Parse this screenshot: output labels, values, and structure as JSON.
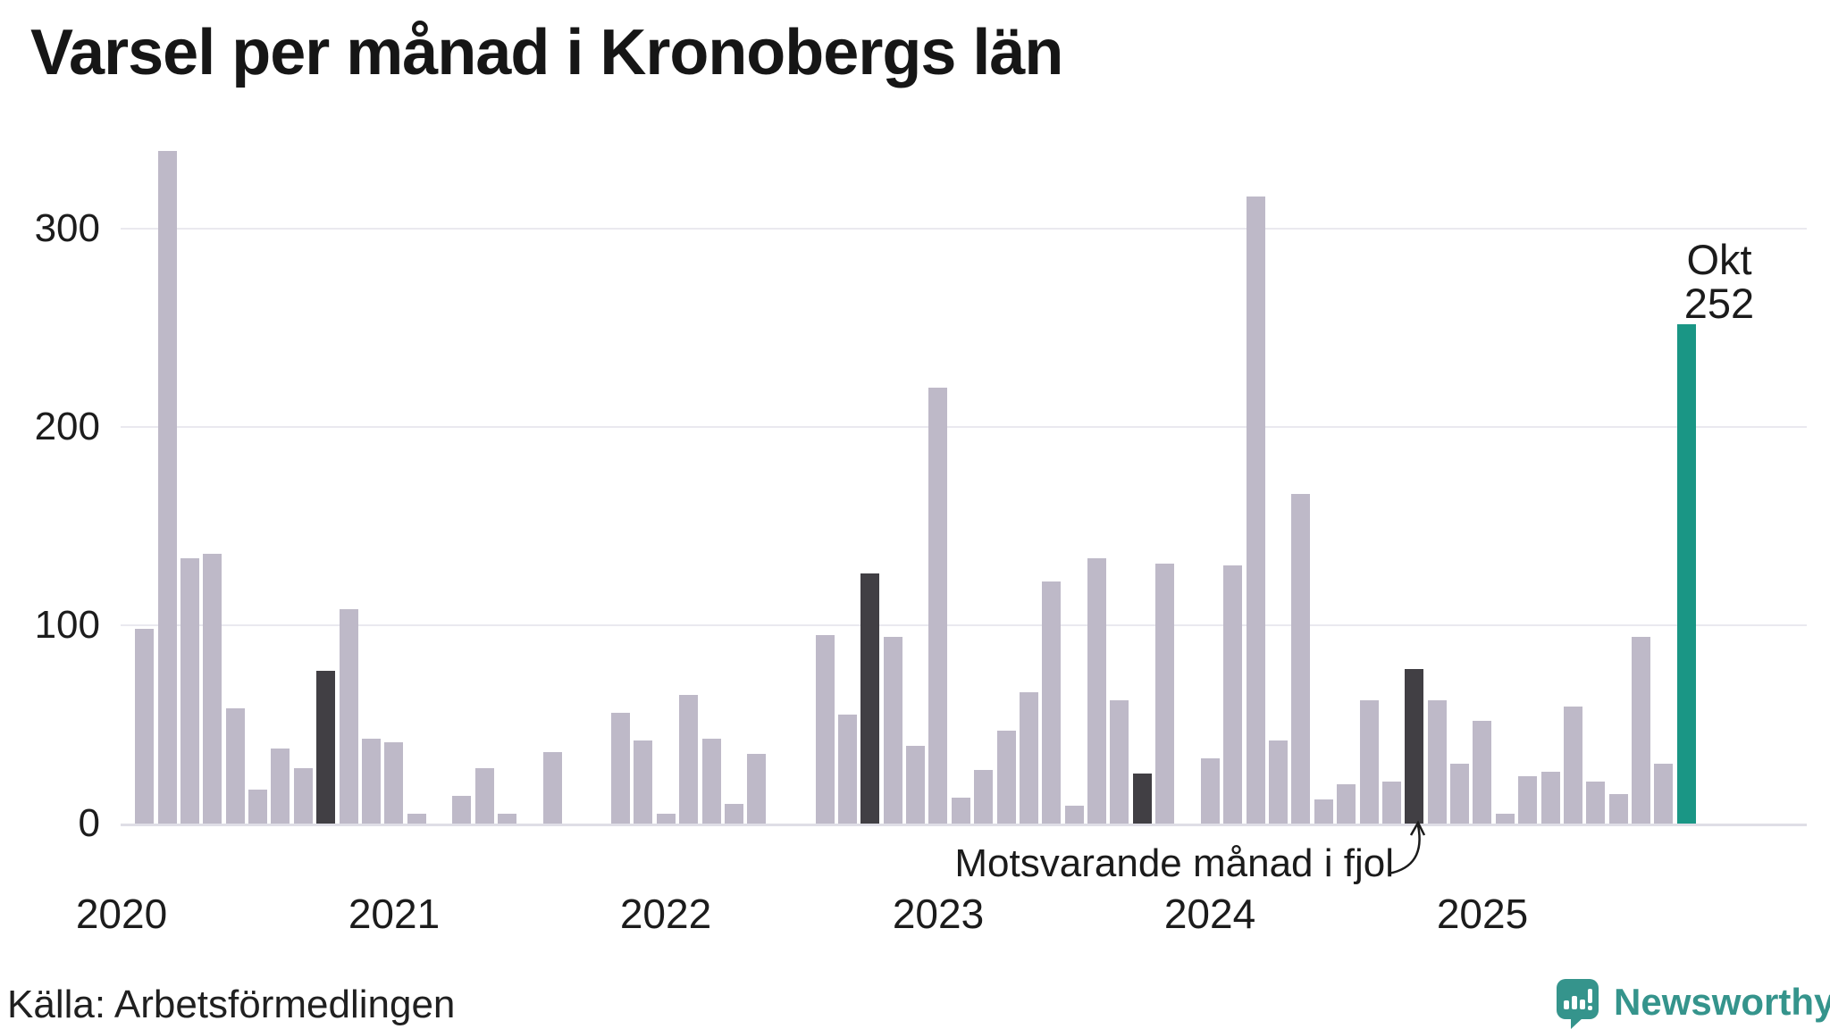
{
  "title": "Varsel per månad i Kronobergs län",
  "source": "Källa: Arbetsförmedlingen",
  "brand": {
    "name": "Newsworthy"
  },
  "annotation": {
    "text": "Motsvarande månad i fjol"
  },
  "peak_label": {
    "line1": "Okt",
    "line2": "252"
  },
  "colors": {
    "bar_normal": "#beb9c8",
    "bar_last_year_month": "#413f44",
    "bar_current": "#1a9685",
    "gridline": "#eae9ef",
    "axis_line": "#dfdee6",
    "text": "#1c1c1c",
    "brand_teal": "#35948c"
  },
  "chart_data": {
    "type": "bar",
    "title": "Varsel per månad i Kronobergs län",
    "xlabel": "",
    "ylabel": "",
    "ylim": [
      0,
      350
    ],
    "y_ticks": [
      0,
      100,
      200,
      300
    ],
    "grid": "horizontal",
    "legend_position": "none",
    "x_years": [
      "2020",
      "2021",
      "2022",
      "2023",
      "2024",
      "2025"
    ],
    "note": "kind: normal = gray bar, fjol = dark bar (same month previous years), current = teal highlighted latest month",
    "months": [
      {
        "month": "2020-02",
        "value": 98,
        "kind": "normal"
      },
      {
        "month": "2020-03",
        "value": 339,
        "kind": "normal"
      },
      {
        "month": "2020-04",
        "value": 134,
        "kind": "normal"
      },
      {
        "month": "2020-05",
        "value": 136,
        "kind": "normal"
      },
      {
        "month": "2020-06",
        "value": 58,
        "kind": "normal"
      },
      {
        "month": "2020-07",
        "value": 17,
        "kind": "normal"
      },
      {
        "month": "2020-08",
        "value": 38,
        "kind": "normal"
      },
      {
        "month": "2020-09",
        "value": 28,
        "kind": "normal"
      },
      {
        "month": "2020-10",
        "value": 77,
        "kind": "fjol"
      },
      {
        "month": "2020-11",
        "value": 108,
        "kind": "normal"
      },
      {
        "month": "2020-12",
        "value": 43,
        "kind": "normal"
      },
      {
        "month": "2021-01",
        "value": 41,
        "kind": "normal"
      },
      {
        "month": "2021-02",
        "value": 5,
        "kind": "normal"
      },
      {
        "month": "2021-03",
        "value": 0,
        "kind": "normal"
      },
      {
        "month": "2021-04",
        "value": 14,
        "kind": "normal"
      },
      {
        "month": "2021-05",
        "value": 28,
        "kind": "normal"
      },
      {
        "month": "2021-06",
        "value": 5,
        "kind": "normal"
      },
      {
        "month": "2021-07",
        "value": 0,
        "kind": "normal"
      },
      {
        "month": "2021-08",
        "value": 36,
        "kind": "normal"
      },
      {
        "month": "2021-09",
        "value": 0,
        "kind": "normal"
      },
      {
        "month": "2021-10",
        "value": 0,
        "kind": "fjol"
      },
      {
        "month": "2021-11",
        "value": 56,
        "kind": "normal"
      },
      {
        "month": "2021-12",
        "value": 42,
        "kind": "normal"
      },
      {
        "month": "2022-01",
        "value": 5,
        "kind": "normal"
      },
      {
        "month": "2022-02",
        "value": 65,
        "kind": "normal"
      },
      {
        "month": "2022-03",
        "value": 43,
        "kind": "normal"
      },
      {
        "month": "2022-04",
        "value": 10,
        "kind": "normal"
      },
      {
        "month": "2022-05",
        "value": 35,
        "kind": "normal"
      },
      {
        "month": "2022-06",
        "value": 0,
        "kind": "normal"
      },
      {
        "month": "2022-07",
        "value": 0,
        "kind": "normal"
      },
      {
        "month": "2022-08",
        "value": 95,
        "kind": "normal"
      },
      {
        "month": "2022-09",
        "value": 55,
        "kind": "normal"
      },
      {
        "month": "2022-10",
        "value": 126,
        "kind": "fjol"
      },
      {
        "month": "2022-11",
        "value": 94,
        "kind": "normal"
      },
      {
        "month": "2022-12",
        "value": 39,
        "kind": "normal"
      },
      {
        "month": "2023-01",
        "value": 220,
        "kind": "normal"
      },
      {
        "month": "2023-02",
        "value": 13,
        "kind": "normal"
      },
      {
        "month": "2023-03",
        "value": 27,
        "kind": "normal"
      },
      {
        "month": "2023-04",
        "value": 47,
        "kind": "normal"
      },
      {
        "month": "2023-05",
        "value": 66,
        "kind": "normal"
      },
      {
        "month": "2023-06",
        "value": 122,
        "kind": "normal"
      },
      {
        "month": "2023-07",
        "value": 9,
        "kind": "normal"
      },
      {
        "month": "2023-08",
        "value": 134,
        "kind": "normal"
      },
      {
        "month": "2023-09",
        "value": 62,
        "kind": "normal"
      },
      {
        "month": "2023-10",
        "value": 25,
        "kind": "fjol"
      },
      {
        "month": "2023-11",
        "value": 131,
        "kind": "normal"
      },
      {
        "month": "2023-12",
        "value": 0,
        "kind": "normal"
      },
      {
        "month": "2024-01",
        "value": 33,
        "kind": "normal"
      },
      {
        "month": "2024-02",
        "value": 130,
        "kind": "normal"
      },
      {
        "month": "2024-03",
        "value": 316,
        "kind": "normal"
      },
      {
        "month": "2024-04",
        "value": 42,
        "kind": "normal"
      },
      {
        "month": "2024-05",
        "value": 166,
        "kind": "normal"
      },
      {
        "month": "2024-06",
        "value": 12,
        "kind": "normal"
      },
      {
        "month": "2024-07",
        "value": 20,
        "kind": "normal"
      },
      {
        "month": "2024-08",
        "value": 62,
        "kind": "normal"
      },
      {
        "month": "2024-09",
        "value": 21,
        "kind": "normal"
      },
      {
        "month": "2024-10",
        "value": 78,
        "kind": "fjol"
      },
      {
        "month": "2024-11",
        "value": 62,
        "kind": "normal"
      },
      {
        "month": "2024-12",
        "value": 30,
        "kind": "normal"
      },
      {
        "month": "2025-01",
        "value": 52,
        "kind": "normal"
      },
      {
        "month": "2025-02",
        "value": 5,
        "kind": "normal"
      },
      {
        "month": "2025-03",
        "value": 24,
        "kind": "normal"
      },
      {
        "month": "2025-04",
        "value": 26,
        "kind": "normal"
      },
      {
        "month": "2025-05",
        "value": 59,
        "kind": "normal"
      },
      {
        "month": "2025-06",
        "value": 21,
        "kind": "normal"
      },
      {
        "month": "2025-07",
        "value": 15,
        "kind": "normal"
      },
      {
        "month": "2025-08",
        "value": 94,
        "kind": "normal"
      },
      {
        "month": "2025-09",
        "value": 30,
        "kind": "normal"
      },
      {
        "month": "2025-10",
        "value": 252,
        "kind": "current"
      }
    ]
  }
}
